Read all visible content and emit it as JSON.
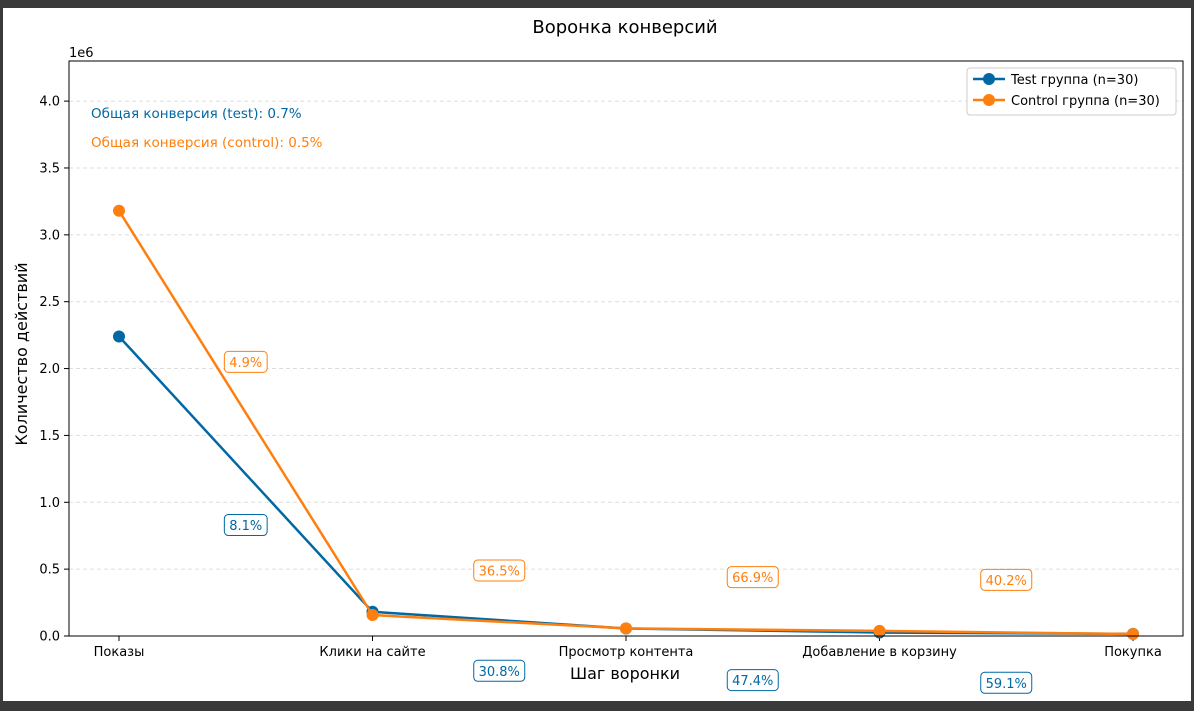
{
  "chart_data": {
    "type": "line",
    "title": "Воронка конверсий",
    "xlabel": "Шаг воронки",
    "ylabel": "Количество действий",
    "y_multiplier": "1e6",
    "ylim": [
      0,
      4300000
    ],
    "yticks": [
      0,
      500000,
      1000000,
      1500000,
      2000000,
      2500000,
      3000000,
      3500000,
      4000000
    ],
    "ytick_labels": [
      "0.0",
      "0.5",
      "1.0",
      "1.5",
      "2.0",
      "2.5",
      "3.0",
      "3.5",
      "4.0"
    ],
    "grid": "horizontal dashed",
    "legend_position": "top-right",
    "categories": [
      "Показы",
      "Клики на сайте",
      "Просмотр контента",
      "Добавление в корзину",
      "Покупка"
    ],
    "series": [
      {
        "name": "Test группа (n=30)",
        "color": "#0068a3",
        "values": [
          2240000,
          181000,
          56000,
          26000,
          16000
        ],
        "step_conversions": [
          "8.1%",
          "30.8%",
          "47.4%",
          "59.1%"
        ],
        "step_conversion_y": [
          830000,
          -260000,
          -330000,
          -350000
        ]
      },
      {
        "name": "Control группа (n=30)",
        "color": "#ff7f0e",
        "values": [
          3180000,
          157000,
          57000,
          38000,
          15000
        ],
        "step_conversions": [
          "4.9%",
          "36.5%",
          "66.9%",
          "40.2%"
        ],
        "step_conversion_y": [
          2050000,
          490000,
          440000,
          420000
        ]
      }
    ],
    "annotations": [
      {
        "text": "Общая конверсия (test): 0.7%",
        "color": "#0068a3"
      },
      {
        "text": "Общая конверсия (control): 0.5%",
        "color": "#ff7f0e"
      }
    ]
  }
}
